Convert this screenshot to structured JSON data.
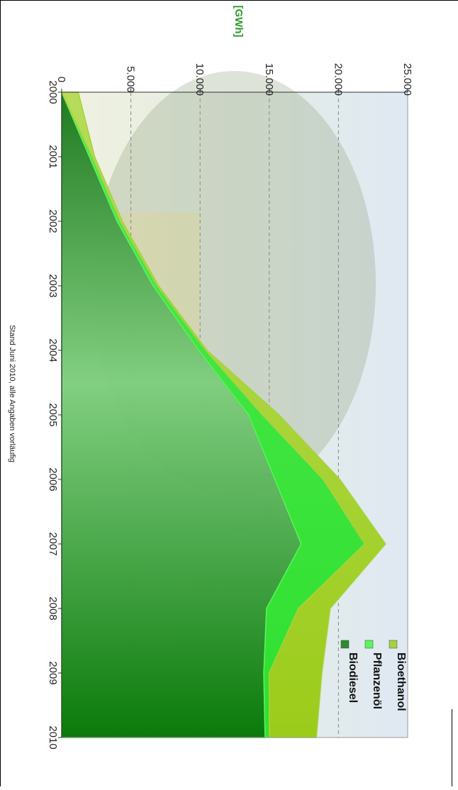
{
  "chart_data": {
    "type": "area",
    "stacked": true,
    "orientation": "rotated-90-clockwise",
    "unit_label": "[GWh]",
    "x": [
      "2000",
      "2001",
      "2002",
      "2003",
      "2004",
      "2005",
      "2006",
      "2007",
      "2008",
      "2009",
      "2010"
    ],
    "series": [
      {
        "name": "Biodiesel",
        "values": [
          0,
          2000,
          4000,
          6600,
          9900,
          13500,
          15400,
          17300,
          14800,
          14600,
          14700
        ]
      },
      {
        "name": "Pflanzenöl",
        "values": [
          0,
          200,
          220,
          300,
          500,
          1000,
          3500,
          4600,
          2300,
          400,
          300
        ]
      },
      {
        "name": "Bioethanol",
        "values": [
          1200,
          180,
          160,
          100,
          100,
          1200,
          1200,
          1500,
          2300,
          3800,
          3400
        ]
      }
    ],
    "ylim": [
      0,
      25000
    ],
    "y_ticks": [
      "0",
      "5.000",
      "10.000",
      "15.000",
      "20.000",
      "25.000"
    ],
    "grid": true,
    "legend_position": "top-right",
    "colors": {
      "Biodiesel": "#2e8b2e",
      "Pflanzenöl": "#5cf55c",
      "Bioethanol": "#a6d23c"
    },
    "footnote": "Stand Juni 2010, alle Angaben vorläufig"
  }
}
